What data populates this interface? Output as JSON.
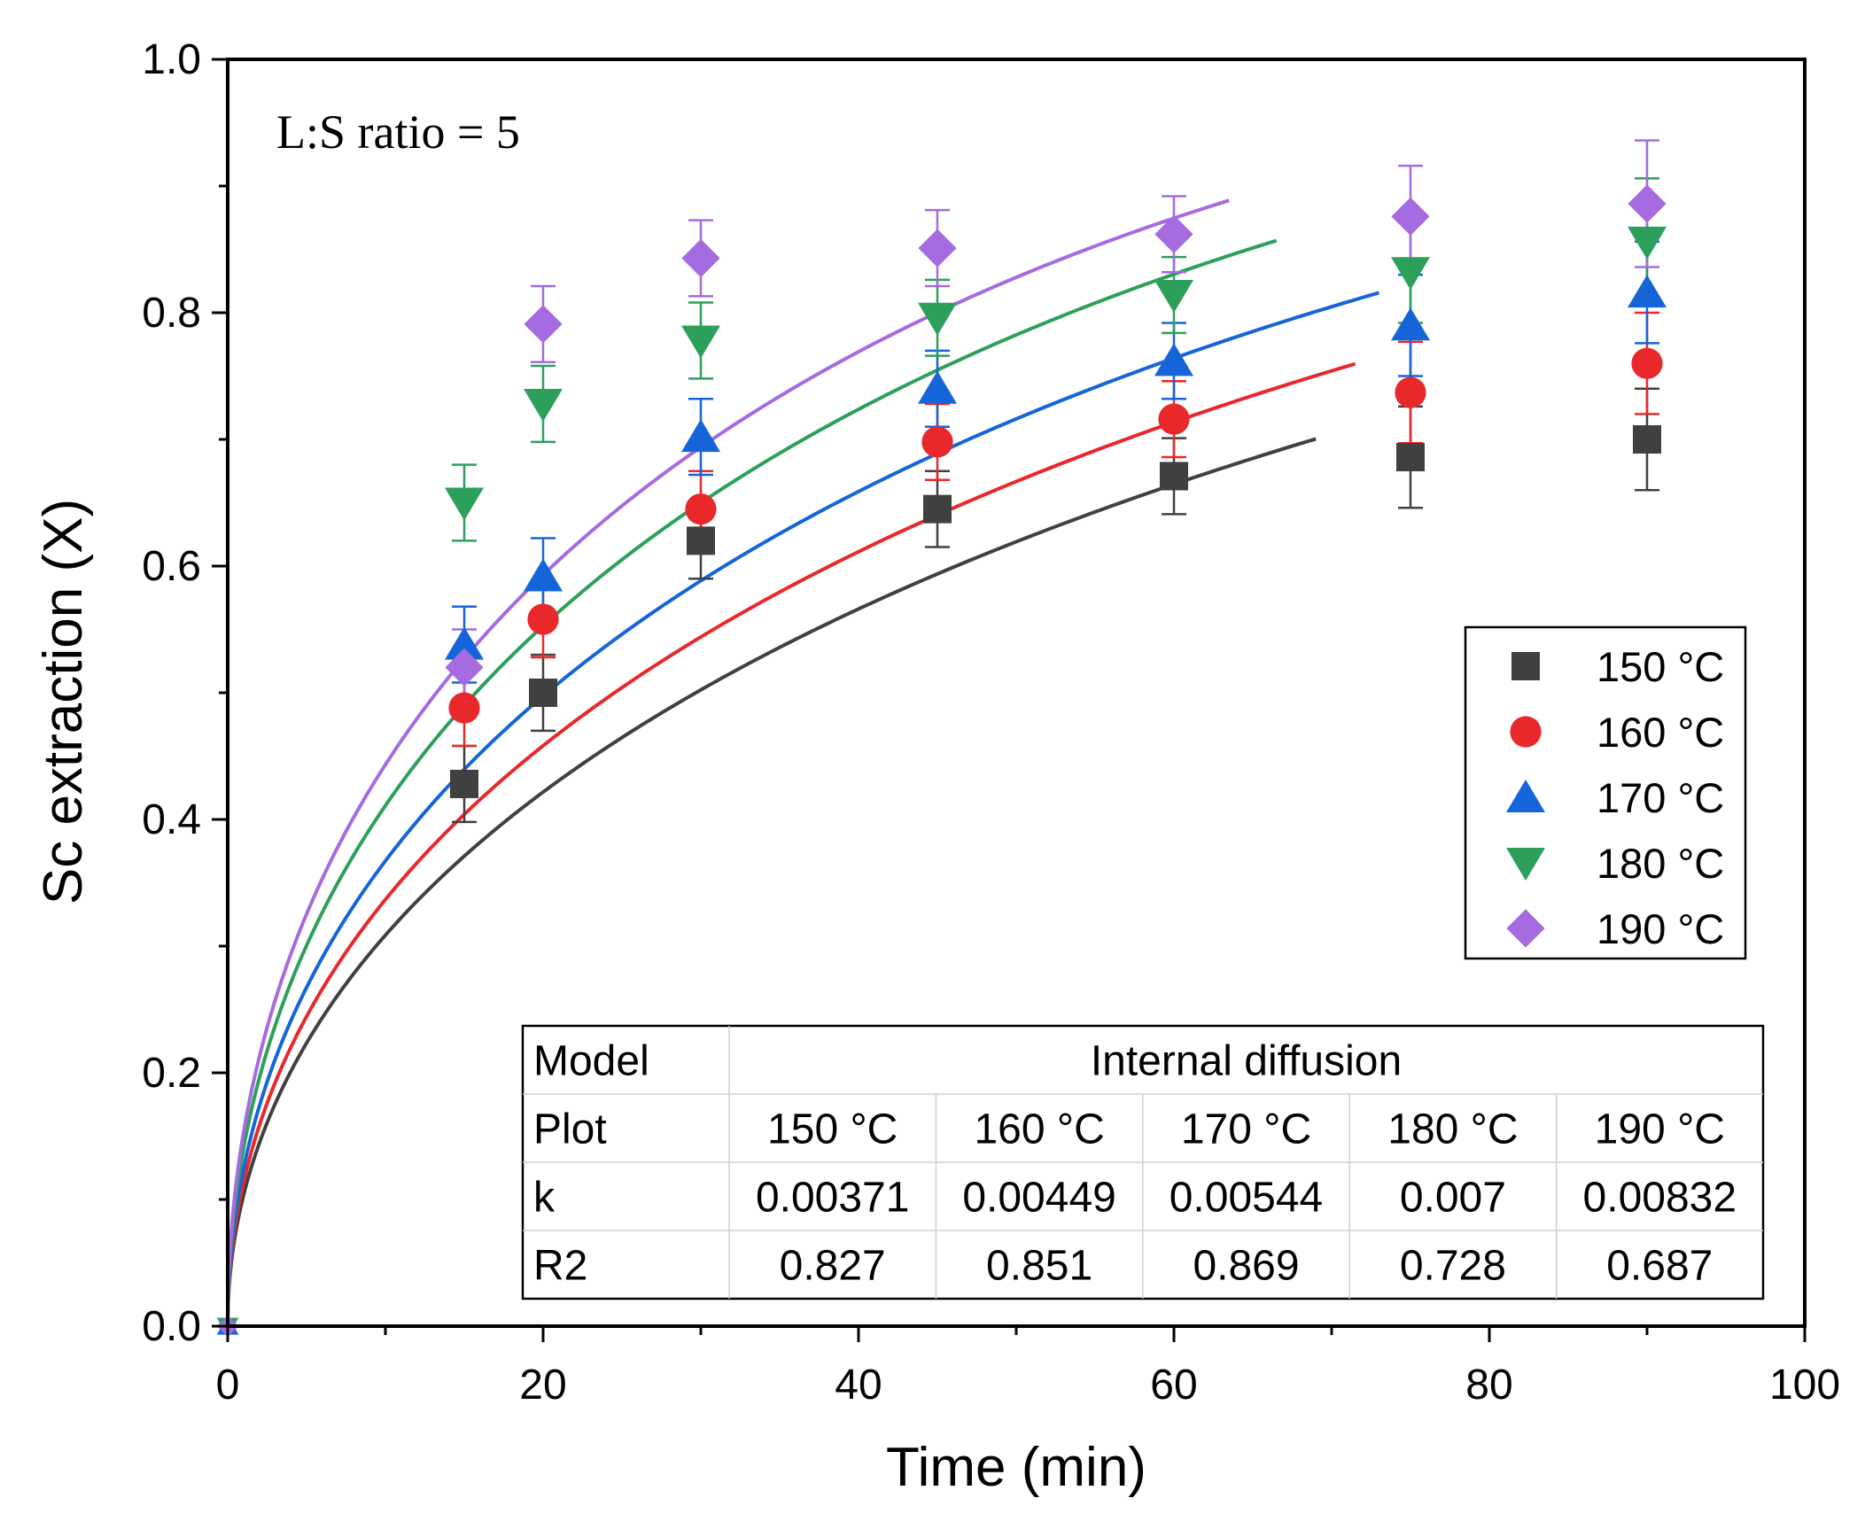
{
  "chart_data": {
    "type": "scatter",
    "title": "",
    "annotation": "L:S ratio = 5",
    "xlabel": "Time (min)",
    "ylabel": "Sc extraction (X)",
    "xlim": [
      0,
      100
    ],
    "ylim": [
      0,
      1.0
    ],
    "x_ticks": [
      0,
      20,
      40,
      60,
      80,
      100
    ],
    "x_tick_labels": [
      "0",
      "20",
      "40",
      "60",
      "80",
      "100"
    ],
    "y_ticks": [
      0,
      0.2,
      0.4,
      0.6,
      0.8,
      1.0
    ],
    "y_tick_labels": [
      "0.0",
      "0.2",
      "0.4",
      "0.6",
      "0.8",
      "1.0"
    ],
    "grid": false,
    "legend_position": "right",
    "x": [
      0,
      15,
      20,
      30,
      45,
      60,
      75,
      90
    ],
    "series": [
      {
        "name": "150 °C",
        "marker": "square",
        "color": "#404040",
        "values": [
          0,
          0.428,
          0.5,
          0.62,
          0.645,
          0.671,
          0.686,
          0.7
        ],
        "errors": [
          0,
          0.03,
          0.03,
          0.03,
          0.03,
          0.03,
          0.04,
          0.04
        ],
        "fit_k": 0.00371,
        "fit_x_end": 69
      },
      {
        "name": "160 °C",
        "marker": "circle",
        "color": "#e8282b",
        "values": [
          0,
          0.488,
          0.558,
          0.645,
          0.698,
          0.716,
          0.737,
          0.76
        ],
        "errors": [
          0,
          0.03,
          0.03,
          0.03,
          0.03,
          0.03,
          0.04,
          0.04
        ],
        "fit_k": 0.00449,
        "fit_x_end": 71.5
      },
      {
        "name": "170 °C",
        "marker": "triangle-up",
        "color": "#1565d8",
        "values": [
          0,
          0.538,
          0.592,
          0.702,
          0.74,
          0.762,
          0.79,
          0.816
        ],
        "errors": [
          0,
          0.03,
          0.03,
          0.03,
          0.03,
          0.03,
          0.04,
          0.04
        ],
        "fit_k": 0.00544,
        "fit_x_end": 73
      },
      {
        "name": "180 °C",
        "marker": "triangle-down",
        "color": "#2ca05a",
        "values": [
          0,
          0.65,
          0.728,
          0.778,
          0.796,
          0.814,
          0.832,
          0.856
        ],
        "errors": [
          0,
          0.03,
          0.03,
          0.03,
          0.03,
          0.03,
          0.04,
          0.05
        ],
        "fit_k": 0.007,
        "fit_x_end": 66.5
      },
      {
        "name": "190 °C",
        "marker": "diamond",
        "color": "#a66be0",
        "values": [
          0,
          0.52,
          0.791,
          0.843,
          0.851,
          0.862,
          0.876,
          0.886
        ],
        "errors": [
          0,
          0.03,
          0.03,
          0.03,
          0.03,
          0.03,
          0.04,
          0.05
        ],
        "fit_k": 0.00832,
        "fit_x_end": 63.5
      }
    ],
    "table": {
      "rows": [
        [
          "Model",
          "Internal diffusion"
        ],
        [
          "Plot",
          "150 °C",
          "160 °C",
          "170 °C",
          "180 °C",
          "190 °C"
        ],
        [
          "k",
          "0.00371",
          "0.00449",
          "0.00544",
          "0.007",
          "0.00832"
        ],
        [
          "R2",
          "0.827",
          "0.851",
          "0.869",
          "0.728",
          "0.687"
        ]
      ]
    }
  }
}
